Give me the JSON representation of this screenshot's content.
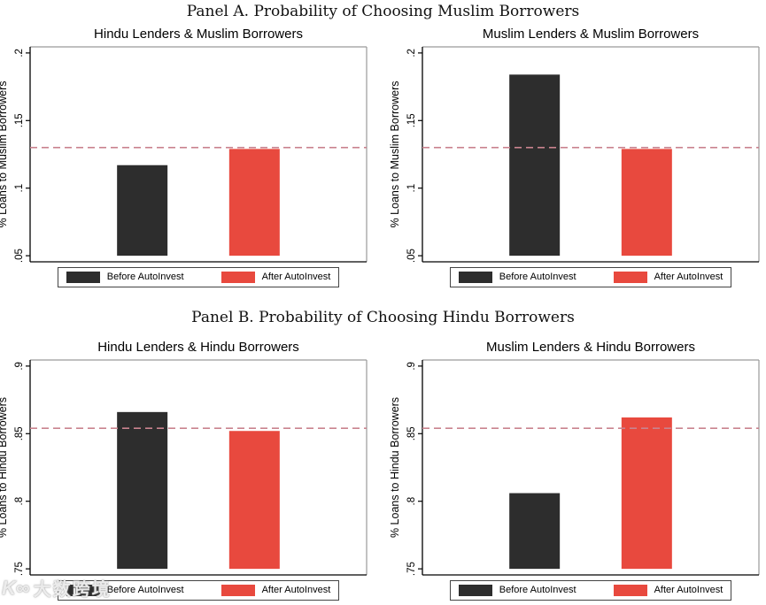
{
  "panels": {
    "a": "Panel A. Probability of Choosing Muslim Borrowers",
    "b": "Panel B. Probability of Choosing Hindu Borrowers"
  },
  "legend": {
    "before": "Before AutoInvest",
    "after": "After AutoInvest"
  },
  "colors": {
    "before": "#2d2d2d",
    "after": "#e8493e",
    "ref_line": "#c9838f",
    "frame_dark": "#000000",
    "frame_light": "#9a9a9a",
    "background": "#ffffff"
  },
  "watermark": {
    "logo": "K∞",
    "text": "大数跨境"
  },
  "chart_data": [
    {
      "type": "bar",
      "panel": "A",
      "title": "Hindu Lenders & Muslim Borrowers",
      "ylabel": "% Loans to Muslim Borrowers",
      "categories": [
        "Before AutoInvest",
        "After AutoInvest"
      ],
      "values": [
        0.117,
        0.129
      ],
      "ref_line": 0.13,
      "bar_base": 0.05,
      "yticks": [
        0.05,
        0.1,
        0.15,
        0.2
      ],
      "ytick_labels": [
        ".05",
        ".1",
        ".15",
        ".2"
      ],
      "ylim": [
        0.0455,
        0.2045
      ],
      "grid": false,
      "legend_position": "bottom"
    },
    {
      "type": "bar",
      "panel": "A",
      "title": "Muslim Lenders & Muslim Borrowers",
      "ylabel": "% Loans to Muslim Borrowers",
      "categories": [
        "Before AutoInvest",
        "After AutoInvest"
      ],
      "values": [
        0.184,
        0.129
      ],
      "ref_line": 0.13,
      "bar_base": 0.05,
      "yticks": [
        0.05,
        0.1,
        0.15,
        0.2
      ],
      "ytick_labels": [
        ".05",
        ".1",
        ".15",
        ".2"
      ],
      "ylim": [
        0.0455,
        0.2045
      ],
      "grid": false,
      "legend_position": "bottom"
    },
    {
      "type": "bar",
      "panel": "B",
      "title": "Hindu Lenders & Hindu Borrowers",
      "ylabel": "% Loans to Hindu Borrowers",
      "categories": [
        "Before AutoInvest",
        "After AutoInvest"
      ],
      "values": [
        0.866,
        0.852
      ],
      "ref_line": 0.854,
      "bar_base": 0.75,
      "yticks": [
        0.75,
        0.8,
        0.85,
        0.9
      ],
      "ytick_labels": [
        ".75",
        ".8",
        ".85",
        ".9"
      ],
      "ylim": [
        0.7455,
        0.9045
      ],
      "grid": false,
      "legend_position": "bottom"
    },
    {
      "type": "bar",
      "panel": "B",
      "title": "Muslim Lenders & Hindu Borrowers",
      "ylabel": "% Loans to Hindu Borrowers",
      "categories": [
        "Before AutoInvest",
        "After AutoInvest"
      ],
      "values": [
        0.806,
        0.862
      ],
      "ref_line": 0.854,
      "bar_base": 0.75,
      "yticks": [
        0.75,
        0.8,
        0.85,
        0.9
      ],
      "ytick_labels": [
        ".75",
        ".8",
        ".85",
        ".9"
      ],
      "ylim": [
        0.7455,
        0.9045
      ],
      "grid": false,
      "legend_position": "bottom"
    }
  ]
}
